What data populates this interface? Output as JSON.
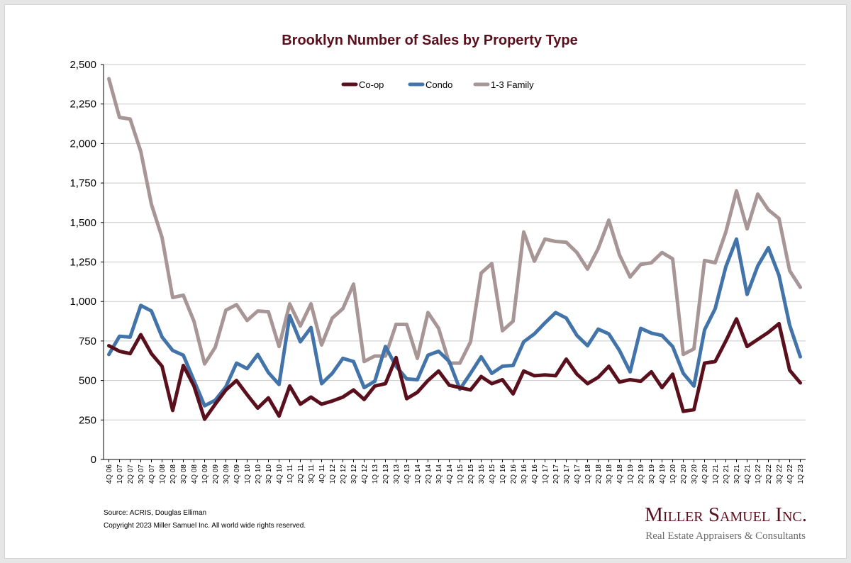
{
  "chart_data": {
    "type": "line",
    "title": "Brooklyn Number of Sales by Property Type",
    "xlabel": "",
    "ylabel": "",
    "ylim": [
      0,
      2500
    ],
    "yticks": [
      0,
      250,
      500,
      750,
      1000,
      1250,
      1500,
      1750,
      2000,
      2250,
      2500
    ],
    "ytick_labels": [
      "0",
      "250",
      "500",
      "750",
      "1,000",
      "1,250",
      "1,500",
      "1,750",
      "2,000",
      "2,250",
      "2,500"
    ],
    "grid": true,
    "legend_position": "top-center",
    "categories": [
      "4Q 06",
      "1Q 07",
      "2Q 07",
      "3Q 07",
      "4Q 07",
      "1Q 08",
      "2Q 08",
      "3Q 08",
      "4Q 08",
      "1Q 09",
      "2Q 09",
      "3Q 09",
      "4Q 09",
      "1Q 10",
      "2Q 10",
      "3Q 10",
      "4Q 10",
      "1Q 11",
      "2Q 11",
      "3Q 11",
      "4Q 11",
      "1Q 12",
      "2Q 12",
      "3Q 12",
      "4Q 12",
      "1Q 13",
      "2Q 13",
      "3Q 13",
      "4Q 13",
      "1Q 14",
      "2Q 14",
      "3Q 14",
      "4Q 14",
      "1Q 15",
      "2Q 15",
      "3Q 15",
      "4Q 15",
      "1Q 16",
      "2Q 16",
      "3Q 16",
      "4Q 16",
      "1Q 17",
      "2Q 17",
      "3Q 17",
      "4Q 17",
      "1Q 18",
      "2Q 18",
      "3Q 18",
      "4Q 18",
      "1Q 19",
      "2Q 19",
      "3Q 19",
      "4Q 19",
      "1Q 20",
      "2Q 20",
      "3Q 20",
      "4Q 20",
      "1Q 21",
      "2Q 21",
      "3Q 21",
      "4Q 21",
      "1Q 22",
      "2Q 22",
      "3Q 22",
      "4Q 22",
      "1Q 23"
    ],
    "series": [
      {
        "name": "Co-op",
        "color": "#5a0f1c",
        "values": [
          720,
          685,
          670,
          790,
          670,
          590,
          310,
          595,
          465,
          255,
          350,
          440,
          500,
          410,
          325,
          390,
          275,
          465,
          350,
          395,
          350,
          370,
          395,
          440,
          380,
          465,
          480,
          645,
          385,
          425,
          500,
          560,
          470,
          455,
          440,
          525,
          480,
          505,
          415,
          560,
          530,
          535,
          530,
          635,
          540,
          480,
          520,
          590,
          490,
          505,
          495,
          555,
          455,
          540,
          305,
          315,
          610,
          620,
          750,
          890,
          715,
          760,
          805,
          860,
          565,
          485
        ]
      },
      {
        "name": "Condo",
        "color": "#4273a9",
        "values": [
          665,
          780,
          775,
          975,
          940,
          775,
          690,
          660,
          500,
          340,
          375,
          460,
          610,
          575,
          665,
          550,
          475,
          910,
          745,
          835,
          480,
          545,
          640,
          620,
          455,
          495,
          715,
          590,
          510,
          505,
          660,
          685,
          620,
          445,
          545,
          650,
          545,
          590,
          595,
          745,
          795,
          865,
          930,
          895,
          785,
          720,
          825,
          795,
          690,
          555,
          830,
          800,
          785,
          715,
          545,
          465,
          820,
          955,
          1220,
          1395,
          1045,
          1225,
          1340,
          1165,
          850,
          650
        ]
      },
      {
        "name": "1-3 Family",
        "color": "#a79695",
        "values": [
          2410,
          2165,
          2155,
          1950,
          1615,
          1405,
          1025,
          1040,
          875,
          605,
          710,
          945,
          980,
          880,
          940,
          935,
          715,
          985,
          845,
          985,
          725,
          895,
          955,
          1110,
          620,
          655,
          655,
          855,
          855,
          640,
          930,
          830,
          610,
          610,
          745,
          1180,
          1240,
          815,
          875,
          1440,
          1255,
          1395,
          1380,
          1375,
          1310,
          1205,
          1335,
          1515,
          1295,
          1155,
          1235,
          1245,
          1310,
          1270,
          665,
          700,
          1260,
          1245,
          1440,
          1700,
          1460,
          1680,
          1580,
          1525,
          1195,
          1090
        ]
      }
    ]
  },
  "footer": {
    "source": "Source: ACRIS, Douglas Elliman",
    "copyright": "Copyright 2023 Miller Samuel Inc.  All world wide rights reserved."
  },
  "brand": {
    "name": "Miller Samuel Inc.",
    "tagline": "Real Estate Appraisers & Consultants",
    "color": "#5a0f1c"
  }
}
